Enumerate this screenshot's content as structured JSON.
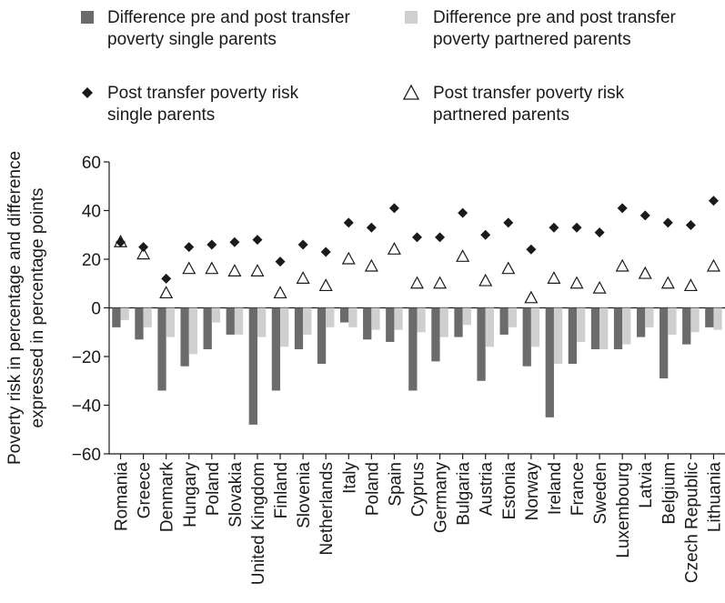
{
  "chart_data": {
    "type": "bar",
    "title": "",
    "ylabel": [
      "Poverty risk in percentage and difference",
      "expressed in percentage points"
    ],
    "ylim": [
      -60,
      60
    ],
    "yticks": [
      "60",
      "40",
      "20",
      "0",
      "−20",
      "−40",
      "−60"
    ],
    "legend": [
      {
        "key": "dark",
        "lines": [
          "Difference pre and post transfer",
          "poverty single parents"
        ],
        "color": "#6b6b6b",
        "marker": "square"
      },
      {
        "key": "light",
        "lines": [
          "Difference pre and post transfer",
          "poverty partnered parents"
        ],
        "color": "#cfcfcf",
        "marker": "square"
      },
      {
        "key": "diamond",
        "lines": [
          "Post transfer poverty risk",
          "single parents"
        ],
        "color": "#1a1a1a",
        "marker": "diamond"
      },
      {
        "key": "triangle",
        "lines": [
          "Post transfer poverty risk",
          "partnered parents"
        ],
        "color": "#1a1a1a",
        "marker": "triangle"
      }
    ],
    "categories": [
      "Romania",
      "Greece",
      "Denmark",
      "Hungary",
      "Poland",
      "Slovakia",
      "United Kingdom",
      "Finland",
      "Slovenia",
      "Netherlands",
      "Italy",
      "Poland",
      "Spain",
      "Cyprus",
      "Germany",
      "Bulgaria",
      "Austria",
      "Estonia",
      "Norway",
      "Ireland",
      "France",
      "Sweden",
      "Luxembourg",
      "Latvia",
      "Belgium",
      "Czech Republic",
      "Lithuania"
    ],
    "series": [
      {
        "key": "dark",
        "type": "bar",
        "values": [
          -8,
          -13,
          -34,
          -24,
          -17,
          -11,
          -48,
          -34,
          -17,
          -23,
          -6,
          -13,
          -14,
          -34,
          -22,
          -12,
          -30,
          -11,
          -24,
          -45,
          -23,
          -17,
          -17,
          -12,
          -29,
          -15,
          -8
        ]
      },
      {
        "key": "light",
        "type": "bar",
        "values": [
          -5,
          -8,
          -12,
          -19,
          -6,
          -11,
          -12,
          -16,
          -11,
          -8,
          -8,
          -9,
          -9,
          -10,
          -12,
          -7,
          -16,
          -8,
          -16,
          -23,
          -14,
          -17,
          -15,
          -8,
          -11,
          -10,
          -9
        ]
      },
      {
        "key": "diamond",
        "type": "scatter",
        "values": [
          27,
          25,
          12,
          25,
          26,
          27,
          28,
          19,
          26,
          23,
          35,
          33,
          41,
          29,
          29,
          39,
          30,
          35,
          24,
          33,
          33,
          31,
          41,
          38,
          35,
          34,
          44
        ]
      },
      {
        "key": "triangle",
        "type": "scatter",
        "values": [
          27,
          22,
          6,
          16,
          16,
          15,
          15,
          6,
          12,
          9,
          20,
          17,
          24,
          10,
          10,
          21,
          11,
          16,
          4,
          12,
          10,
          8,
          17,
          14,
          10,
          9,
          17
        ]
      }
    ],
    "grid": false
  }
}
